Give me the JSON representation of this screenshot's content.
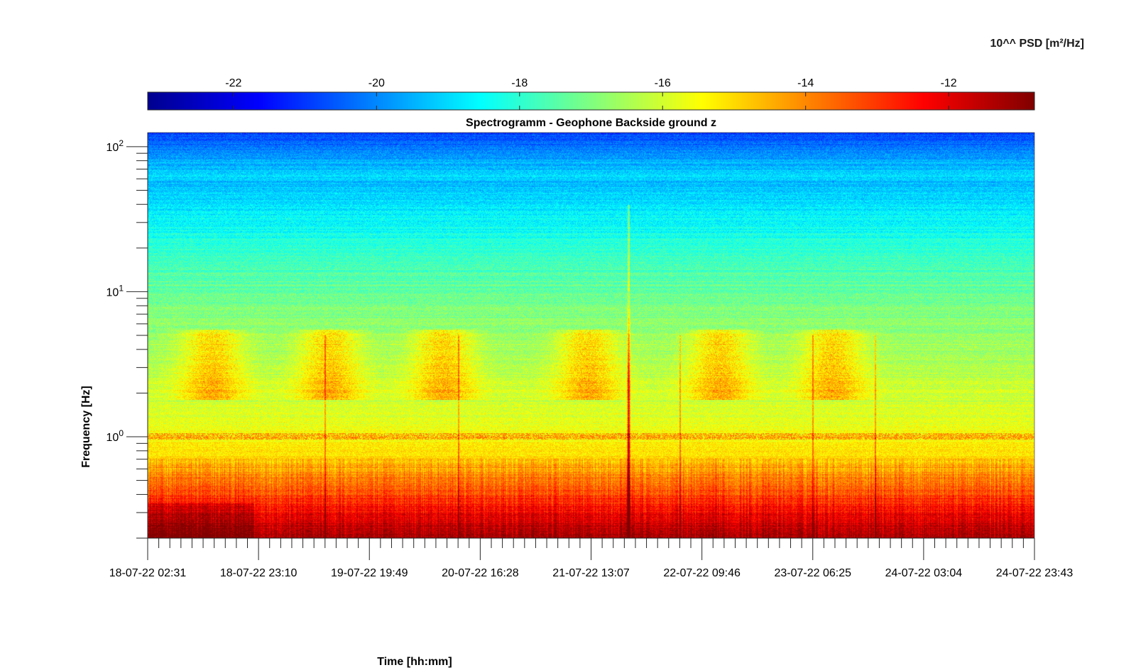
{
  "chart_data": {
    "type": "heatmap",
    "title": "Spectrogramm - Geophone Backside ground z",
    "xlabel": "Time [hh:mm]",
    "ylabel": "Frequency [Hz]",
    "colorbar": {
      "label": "10^^ PSD [m²/Hz]",
      "colormap": "jet",
      "range": [
        -23.2,
        -10.8
      ],
      "ticks": [
        -22,
        -20,
        -18,
        -16,
        -14,
        -12
      ],
      "tick_labels": [
        "-22",
        "-20",
        "-18",
        "-16",
        "-14",
        "-12"
      ],
      "position": "top"
    },
    "x_ticks": [
      "18-07-22 02:31",
      "18-07-22 23:10",
      "19-07-22 19:49",
      "20-07-22 16:28",
      "21-07-22 13:07",
      "22-07-22 09:46",
      "23-07-22 06:25",
      "24-07-22 03:04",
      "24-07-22 23:43"
    ],
    "y_scale": "log",
    "y_range_hz": [
      0.2,
      125
    ],
    "y_ticks": [
      1,
      10,
      100
    ],
    "y_tick_labels": [
      {
        "base": "10",
        "exp": "0"
      },
      {
        "base": "10",
        "exp": "1"
      },
      {
        "base": "10",
        "exp": "2"
      }
    ],
    "features": {
      "dominant_event_time_fraction": 0.542,
      "microseism_band_hz": [
        0.2,
        0.7
      ],
      "cultural_noise_band_hz": [
        2,
        5
      ],
      "narrow_line_hz": 1.0
    },
    "grid": false
  }
}
